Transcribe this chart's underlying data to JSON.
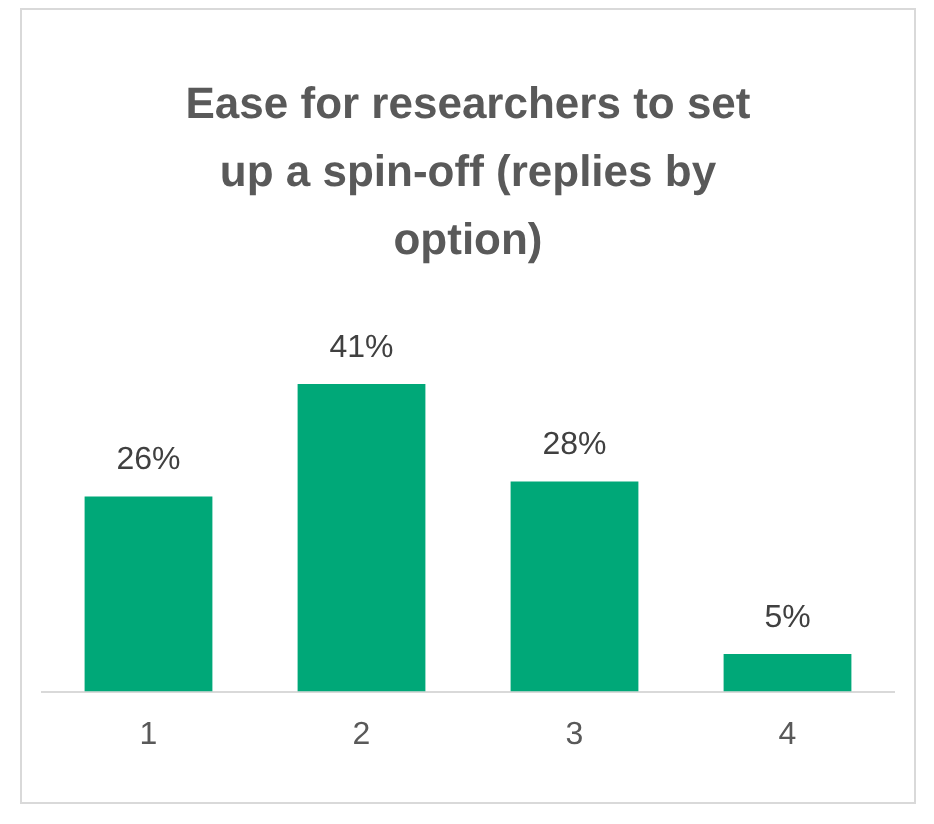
{
  "chart_data": {
    "type": "bar",
    "title": "Ease for researchers to set up a spin-off (replies by option)",
    "categories": [
      "1",
      "2",
      "3",
      "4"
    ],
    "values": [
      26,
      41,
      28,
      5
    ],
    "value_labels": [
      "26%",
      "41%",
      "28%",
      "5%"
    ],
    "color": "#00a878",
    "grid": false,
    "legend": false
  }
}
